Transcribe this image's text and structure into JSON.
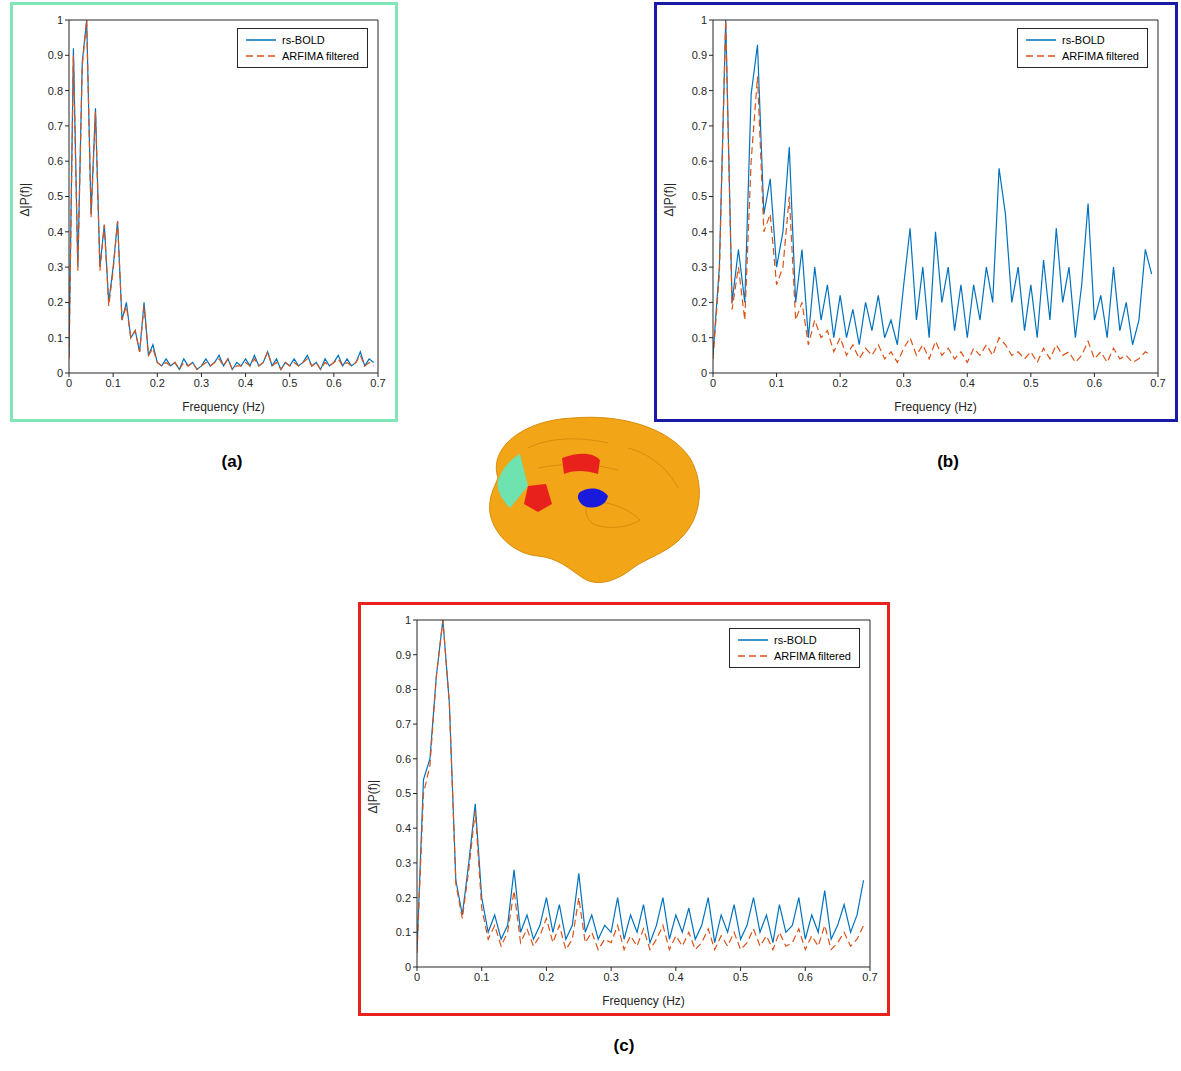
{
  "chart_data": [
    {
      "type": "line",
      "title": "(a)",
      "x_label": "Frequency (Hz)",
      "y_label": "Δ|P(f)|",
      "x": [
        0,
        0.01,
        0.02,
        0.03,
        0.04,
        0.05,
        0.06,
        0.07,
        0.08,
        0.09,
        0.1,
        0.11,
        0.12,
        0.13,
        0.14,
        0.15,
        0.16,
        0.17,
        0.18,
        0.19,
        0.2,
        0.21,
        0.22,
        0.23,
        0.24,
        0.25,
        0.26,
        0.27,
        0.28,
        0.29,
        0.3,
        0.31,
        0.32,
        0.33,
        0.34,
        0.35,
        0.36,
        0.37,
        0.38,
        0.39,
        0.4,
        0.41,
        0.42,
        0.43,
        0.44,
        0.45,
        0.46,
        0.47,
        0.48,
        0.49,
        0.5,
        0.51,
        0.52,
        0.53,
        0.54,
        0.55,
        0.56,
        0.57,
        0.58,
        0.59,
        0.6,
        0.61,
        0.62,
        0.63,
        0.64,
        0.65,
        0.66,
        0.67,
        0.68,
        0.69
      ],
      "series": [
        {
          "name": "rs-BOLD",
          "color": "#0072bd",
          "line_style": "solid",
          "values": [
            0.05,
            0.92,
            0.3,
            0.88,
            1.0,
            0.45,
            0.75,
            0.3,
            0.42,
            0.2,
            0.3,
            0.43,
            0.15,
            0.2,
            0.1,
            0.12,
            0.06,
            0.2,
            0.05,
            0.08,
            0.03,
            0.02,
            0.04,
            0.02,
            0.03,
            0.01,
            0.04,
            0.02,
            0.03,
            0.01,
            0.02,
            0.04,
            0.02,
            0.03,
            0.05,
            0.02,
            0.04,
            0.01,
            0.03,
            0.02,
            0.04,
            0.02,
            0.05,
            0.02,
            0.03,
            0.06,
            0.02,
            0.04,
            0.01,
            0.03,
            0.02,
            0.04,
            0.02,
            0.03,
            0.05,
            0.02,
            0.03,
            0.01,
            0.04,
            0.02,
            0.03,
            0.05,
            0.02,
            0.04,
            0.02,
            0.03,
            0.06,
            0.02,
            0.04,
            0.03
          ]
        },
        {
          "name": "ARFIMA filtered",
          "color": "#d95319",
          "line_style": "dashed",
          "values": [
            0.04,
            0.9,
            0.29,
            0.87,
            1.0,
            0.44,
            0.74,
            0.29,
            0.42,
            0.19,
            0.29,
            0.43,
            0.15,
            0.19,
            0.1,
            0.12,
            0.06,
            0.19,
            0.05,
            0.07,
            0.03,
            0.02,
            0.03,
            0.02,
            0.03,
            0.01,
            0.03,
            0.02,
            0.03,
            0.01,
            0.02,
            0.03,
            0.02,
            0.03,
            0.04,
            0.02,
            0.04,
            0.01,
            0.02,
            0.02,
            0.03,
            0.02,
            0.04,
            0.02,
            0.03,
            0.06,
            0.02,
            0.03,
            0.01,
            0.03,
            0.02,
            0.03,
            0.02,
            0.03,
            0.04,
            0.02,
            0.03,
            0.01,
            0.03,
            0.02,
            0.03,
            0.04,
            0.02,
            0.03,
            0.02,
            0.03,
            0.05,
            0.02,
            0.03,
            0.02
          ]
        }
      ],
      "xlim": [
        0,
        0.7
      ],
      "xticks": [
        0,
        0.1,
        0.2,
        0.3,
        0.4,
        0.5,
        0.6,
        0.7
      ],
      "ylim": [
        0,
        1
      ],
      "yticks": [
        0,
        0.1,
        0.2,
        0.3,
        0.4,
        0.5,
        0.6,
        0.7,
        0.8,
        0.9,
        1
      ],
      "legend": "upper right",
      "grid": false
    },
    {
      "type": "line",
      "title": "(b)",
      "x_label": "Frequency (Hz)",
      "y_label": "Δ|P(f)|",
      "x": [
        0,
        0.01,
        0.02,
        0.03,
        0.04,
        0.05,
        0.06,
        0.07,
        0.08,
        0.09,
        0.1,
        0.11,
        0.12,
        0.13,
        0.14,
        0.15,
        0.16,
        0.17,
        0.18,
        0.19,
        0.2,
        0.21,
        0.22,
        0.23,
        0.24,
        0.25,
        0.26,
        0.27,
        0.28,
        0.29,
        0.3,
        0.31,
        0.32,
        0.33,
        0.34,
        0.35,
        0.36,
        0.37,
        0.38,
        0.39,
        0.4,
        0.41,
        0.42,
        0.43,
        0.44,
        0.45,
        0.46,
        0.47,
        0.48,
        0.49,
        0.5,
        0.51,
        0.52,
        0.53,
        0.54,
        0.55,
        0.56,
        0.57,
        0.58,
        0.59,
        0.6,
        0.61,
        0.62,
        0.63,
        0.64,
        0.65,
        0.66,
        0.67,
        0.68,
        0.69
      ],
      "series": [
        {
          "name": "rs-BOLD",
          "color": "#0072bd",
          "line_style": "solid",
          "values": [
            0.05,
            0.3,
            1.0,
            0.2,
            0.35,
            0.2,
            0.79,
            0.93,
            0.45,
            0.55,
            0.3,
            0.4,
            0.64,
            0.2,
            0.35,
            0.1,
            0.3,
            0.15,
            0.25,
            0.1,
            0.22,
            0.1,
            0.18,
            0.08,
            0.2,
            0.12,
            0.22,
            0.1,
            0.15,
            0.08,
            0.25,
            0.41,
            0.15,
            0.3,
            0.1,
            0.4,
            0.2,
            0.3,
            0.12,
            0.25,
            0.1,
            0.25,
            0.15,
            0.3,
            0.2,
            0.58,
            0.45,
            0.2,
            0.3,
            0.12,
            0.25,
            0.1,
            0.32,
            0.15,
            0.41,
            0.2,
            0.3,
            0.1,
            0.25,
            0.48,
            0.15,
            0.22,
            0.1,
            0.3,
            0.12,
            0.2,
            0.08,
            0.15,
            0.35,
            0.28
          ]
        },
        {
          "name": "ARFIMA filtered",
          "color": "#d95319",
          "line_style": "dashed",
          "values": [
            0.04,
            0.28,
            1.0,
            0.18,
            0.3,
            0.15,
            0.6,
            0.84,
            0.4,
            0.45,
            0.25,
            0.3,
            0.5,
            0.15,
            0.2,
            0.08,
            0.15,
            0.1,
            0.12,
            0.06,
            0.1,
            0.05,
            0.08,
            0.04,
            0.07,
            0.05,
            0.08,
            0.04,
            0.06,
            0.03,
            0.07,
            0.1,
            0.05,
            0.08,
            0.04,
            0.09,
            0.05,
            0.07,
            0.04,
            0.06,
            0.03,
            0.07,
            0.05,
            0.08,
            0.05,
            0.1,
            0.08,
            0.05,
            0.06,
            0.04,
            0.06,
            0.03,
            0.07,
            0.04,
            0.08,
            0.05,
            0.06,
            0.03,
            0.05,
            0.09,
            0.04,
            0.06,
            0.03,
            0.07,
            0.04,
            0.05,
            0.03,
            0.04,
            0.06,
            0.05
          ]
        }
      ],
      "xlim": [
        0,
        0.7
      ],
      "xticks": [
        0,
        0.1,
        0.2,
        0.3,
        0.4,
        0.5,
        0.6,
        0.7
      ],
      "ylim": [
        0,
        1
      ],
      "yticks": [
        0,
        0.1,
        0.2,
        0.3,
        0.4,
        0.5,
        0.6,
        0.7,
        0.8,
        0.9,
        1
      ],
      "legend": "upper right",
      "grid": false
    },
    {
      "type": "line",
      "title": "(c)",
      "x_label": "Frequency (Hz)",
      "y_label": "Δ|P(f)|",
      "x": [
        0,
        0.01,
        0.02,
        0.03,
        0.04,
        0.05,
        0.06,
        0.07,
        0.08,
        0.09,
        0.1,
        0.11,
        0.12,
        0.13,
        0.14,
        0.15,
        0.16,
        0.17,
        0.18,
        0.19,
        0.2,
        0.21,
        0.22,
        0.23,
        0.24,
        0.25,
        0.26,
        0.27,
        0.28,
        0.29,
        0.3,
        0.31,
        0.32,
        0.33,
        0.34,
        0.35,
        0.36,
        0.37,
        0.38,
        0.39,
        0.4,
        0.41,
        0.42,
        0.43,
        0.44,
        0.45,
        0.46,
        0.47,
        0.48,
        0.49,
        0.5,
        0.51,
        0.52,
        0.53,
        0.54,
        0.55,
        0.56,
        0.57,
        0.58,
        0.59,
        0.6,
        0.61,
        0.62,
        0.63,
        0.64,
        0.65,
        0.66,
        0.67,
        0.68,
        0.69
      ],
      "series": [
        {
          "name": "rs-BOLD",
          "color": "#0072bd",
          "line_style": "solid",
          "values": [
            0.05,
            0.54,
            0.6,
            0.84,
            1.0,
            0.76,
            0.25,
            0.15,
            0.3,
            0.47,
            0.2,
            0.1,
            0.15,
            0.08,
            0.12,
            0.28,
            0.1,
            0.15,
            0.08,
            0.12,
            0.2,
            0.1,
            0.18,
            0.08,
            0.12,
            0.27,
            0.1,
            0.15,
            0.08,
            0.12,
            0.1,
            0.2,
            0.08,
            0.15,
            0.1,
            0.18,
            0.07,
            0.12,
            0.2,
            0.08,
            0.15,
            0.1,
            0.17,
            0.08,
            0.12,
            0.2,
            0.07,
            0.15,
            0.1,
            0.18,
            0.08,
            0.12,
            0.2,
            0.1,
            0.15,
            0.07,
            0.18,
            0.1,
            0.12,
            0.2,
            0.08,
            0.15,
            0.1,
            0.22,
            0.08,
            0.12,
            0.18,
            0.1,
            0.15,
            0.25
          ]
        },
        {
          "name": "ARFIMA filtered",
          "color": "#d95319",
          "line_style": "dashed",
          "values": [
            0.04,
            0.5,
            0.58,
            0.84,
            1.0,
            0.76,
            0.24,
            0.14,
            0.28,
            0.45,
            0.17,
            0.08,
            0.12,
            0.06,
            0.1,
            0.22,
            0.07,
            0.11,
            0.06,
            0.09,
            0.14,
            0.07,
            0.12,
            0.05,
            0.08,
            0.2,
            0.07,
            0.1,
            0.05,
            0.08,
            0.07,
            0.12,
            0.05,
            0.09,
            0.06,
            0.11,
            0.05,
            0.08,
            0.12,
            0.05,
            0.09,
            0.06,
            0.1,
            0.05,
            0.07,
            0.11,
            0.05,
            0.09,
            0.06,
            0.1,
            0.05,
            0.07,
            0.11,
            0.06,
            0.09,
            0.05,
            0.1,
            0.06,
            0.07,
            0.11,
            0.05,
            0.09,
            0.06,
            0.12,
            0.05,
            0.07,
            0.1,
            0.06,
            0.08,
            0.12
          ]
        }
      ],
      "xlim": [
        0,
        0.7
      ],
      "xticks": [
        0,
        0.1,
        0.2,
        0.3,
        0.4,
        0.5,
        0.6,
        0.7
      ],
      "ylim": [
        0,
        1
      ],
      "yticks": [
        0,
        0.1,
        0.2,
        0.3,
        0.4,
        0.5,
        0.6,
        0.7,
        0.8,
        0.9,
        1
      ],
      "legend": "upper right",
      "grid": false
    }
  ]
}
